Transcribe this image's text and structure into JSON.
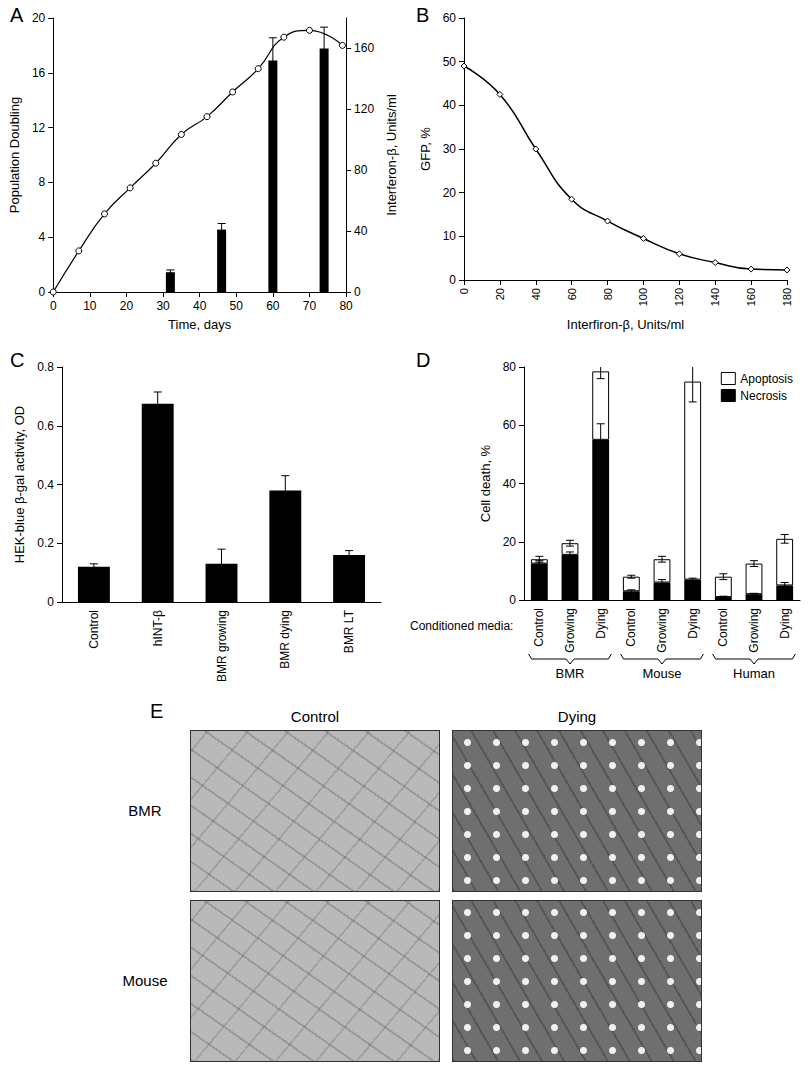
{
  "chart_data": [
    {
      "title": "A",
      "type": "line",
      "xlabel": "Time, days",
      "ylabel": "Population Doubling",
      "y2label": "Interferon-β, Units/ml",
      "xlim": [
        0,
        80
      ],
      "xticks": [
        0,
        10,
        20,
        30,
        40,
        50,
        60,
        70,
        80
      ],
      "ylim": [
        0,
        20
      ],
      "yticks": [
        0,
        4,
        8,
        12,
        16,
        20
      ],
      "y2lim": [
        0,
        180
      ],
      "y2ticks": [
        0,
        40,
        80,
        120,
        160
      ],
      "grid": false,
      "series": [
        {
          "type": "line",
          "marker": "circle",
          "color": "#000000",
          "x": [
            0,
            7,
            14,
            21,
            28,
            35,
            42,
            49,
            56,
            63,
            70,
            79
          ],
          "values": [
            0,
            3,
            5.7,
            7.6,
            9.4,
            11.5,
            12.8,
            14.6,
            16.3,
            18.6,
            19.1,
            18.0
          ]
        },
        {
          "type": "bar",
          "axis": "y2",
          "color": "#000000",
          "x": [
            32,
            46,
            60,
            74
          ],
          "values": [
            13,
            41,
            152,
            160
          ],
          "errors": [
            1.5,
            4,
            15,
            14
          ]
        }
      ]
    },
    {
      "title": "B",
      "type": "line",
      "xlabel": "Interfiron-β, Units/ml",
      "ylabel": "GFP, %",
      "xlim": [
        0,
        180
      ],
      "xticks": [
        0,
        20,
        40,
        60,
        80,
        100,
        120,
        140,
        160,
        180
      ],
      "ylim": [
        0,
        60
      ],
      "yticks": [
        0,
        10,
        20,
        30,
        40,
        50,
        60
      ],
      "grid": false,
      "marker": "diamond",
      "color": "#000000",
      "x": [
        0,
        20,
        40,
        60,
        80,
        100,
        120,
        140,
        160,
        180
      ],
      "values": [
        49,
        42.5,
        30,
        18.5,
        13.5,
        9.5,
        6,
        4,
        2.5,
        2.3
      ]
    },
    {
      "title": "C",
      "type": "bar",
      "ylabel": "HEK-blue β-gal activity, OD",
      "categories": [
        "Control",
        "hINT-β",
        "BMR growing",
        "BMR dying",
        "BMR LT"
      ],
      "values": [
        0.12,
        0.675,
        0.13,
        0.38,
        0.16
      ],
      "errors": [
        0.01,
        0.04,
        0.05,
        0.05,
        0.015
      ],
      "color": "#000000",
      "ylim": [
        0,
        0.8
      ],
      "yticks": [
        0,
        0.2,
        0.4,
        0.6,
        0.8
      ],
      "grid": false
    },
    {
      "title": "D",
      "type": "bar",
      "stacked": true,
      "ylabel": "Cell death, %",
      "xlabel": "Conditioned media:",
      "categories": [
        "Control",
        "Growing",
        "Dying",
        "Control",
        "Growing",
        "Dying",
        "Control",
        "Growing",
        "Dying"
      ],
      "groups": [
        {
          "label": "BMR",
          "members": [
            0,
            1,
            2
          ]
        },
        {
          "label": "Mouse",
          "members": [
            3,
            4,
            5
          ]
        },
        {
          "label": "Human",
          "members": [
            6,
            7,
            8
          ]
        }
      ],
      "series": [
        {
          "name": "Necrosis",
          "color": "#000000",
          "values": [
            12.5,
            15.5,
            55,
            3,
            6,
            7,
            1,
            2,
            5
          ],
          "errors": [
            1,
            1,
            5.5,
            0.5,
            1,
            0.5,
            0.3,
            0.3,
            1
          ]
        },
        {
          "name": "Apoptosis",
          "color": "#ffffff",
          "values": [
            1.5,
            4,
            23.5,
            5,
            8,
            68,
            7,
            10.5,
            16
          ],
          "errors": [
            1,
            1,
            2.5,
            0.5,
            1,
            7,
            1,
            1,
            1.5
          ]
        }
      ],
      "ylim": [
        0,
        80
      ],
      "yticks": [
        0,
        20,
        40,
        60,
        80
      ],
      "legend": "top-right",
      "grid": false
    }
  ],
  "image_panel": {
    "title": "E",
    "columns": [
      "Control",
      "Dying"
    ],
    "rows": [
      "BMR",
      "Mouse"
    ]
  }
}
